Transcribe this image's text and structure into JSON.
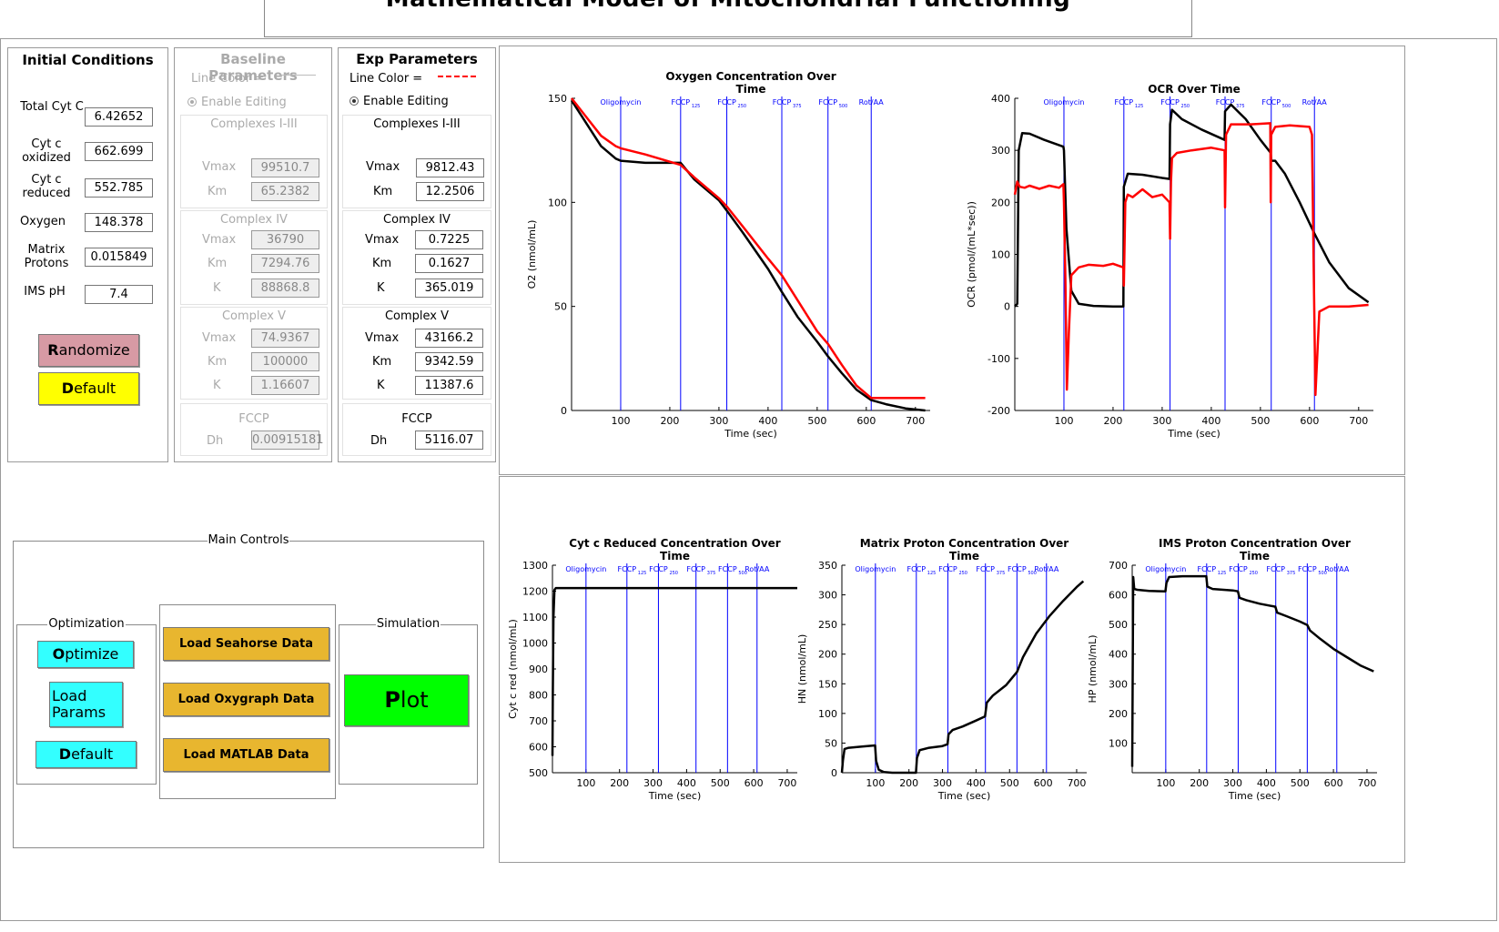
{
  "app_title": "Mathematical Model of Mitochondrial Functioning",
  "initial_conditions": {
    "title": "Initial Conditions",
    "fields": [
      {
        "label": "Total Cyt C",
        "value": "6.42652"
      },
      {
        "label": "Cyt c oxidized",
        "value": "662.699"
      },
      {
        "label": "Cyt c reduced",
        "value": "552.785"
      },
      {
        "label": "Oxygen",
        "value": "148.378"
      },
      {
        "label": "Matrix Protons",
        "value": "0.015849"
      },
      {
        "label": "IMS pH",
        "value": "7.4"
      }
    ],
    "randomize_label": "Randomize",
    "default_label": "Default"
  },
  "baseline": {
    "title": "Baseline Parameters",
    "line_color_label": "Line Color =",
    "line_color": "#bbbbbb",
    "enable_label": "Enable Editing",
    "c13_title": "Complexes I-III",
    "c13_vmax": "99510.7",
    "c13_km": "65.2382",
    "c4_title": "Complex IV",
    "c4_vmax": "36790",
    "c4_km": "7294.76",
    "c4_k": "88868.8",
    "c5_title": "Complex V",
    "c5_vmax": "74.9367",
    "c5_km": "100000",
    "c5_k": "1.16607",
    "fccp_title": "FCCP",
    "fccp_dh": "0.00915181"
  },
  "exp": {
    "title": "Exp Parameters",
    "line_color_label": "Line Color =",
    "line_color": "#ff0000",
    "enable_label": "Enable Editing",
    "c13_title": "Complexes I-III",
    "c13_vmax": "9812.43",
    "c13_km": "12.2506",
    "c4_title": "Complex IV",
    "c4_vmax": "0.7225",
    "c4_km": "0.1627",
    "c4_k": "365.019",
    "c5_title": "Complex V",
    "c5_vmax": "43166.2",
    "c5_km": "9342.59",
    "c5_k": "11387.6",
    "fccp_title": "FCCP",
    "fccp_dh": "5116.07"
  },
  "param_labels": {
    "vmax": "Vmax",
    "km": "Km",
    "k": "K",
    "dh": "Dh"
  },
  "main_controls": {
    "title": "Main Controls",
    "optimization_label": "Optimization",
    "optimize": "Optimize",
    "load_params_1": "Load",
    "load_params_2": "Params",
    "default": "Default",
    "load_seahorse": "Load Seahorse Data",
    "load_oxygraph": "Load Oxygraph Data",
    "load_matlab": "Load MATLAB Data",
    "simulation_label": "Simulation",
    "plot": "Plot"
  },
  "colors": {
    "model": "#000000",
    "exp": "#ff0000",
    "injection": "#0000ff",
    "pink": "#d79aa4",
    "yellow": "#ffff00",
    "cyan": "#33ffff",
    "orange": "#e8b62f",
    "green": "#00ff00"
  },
  "injections": [
    {
      "name": "Oligomycin",
      "sub": ""
    },
    {
      "name": "FCCP",
      "sub": "125"
    },
    {
      "name": "FCCP",
      "sub": "250"
    },
    {
      "name": "FCCP",
      "sub": "375"
    },
    {
      "name": "FCCP",
      "sub": "500"
    },
    {
      "name": "Rot/AA",
      "sub": ""
    }
  ],
  "chart_data": [
    {
      "type": "line",
      "title": "Oxygen Concentration Over Time",
      "xlabel": "Time (sec)",
      "ylabel": "O2 (nmol/mL)",
      "xlim": [
        0,
        730
      ],
      "ylim": [
        0,
        150
      ],
      "xticks": [
        100,
        200,
        300,
        400,
        500,
        600,
        700
      ],
      "yticks": [
        0,
        50,
        100,
        150
      ],
      "injection_times": [
        100,
        222,
        316,
        428,
        522,
        610
      ],
      "series": [
        {
          "color": "#000000",
          "x": [
            0,
            30,
            60,
            90,
            100,
            150,
            222,
            250,
            300,
            316,
            350,
            400,
            428,
            460,
            500,
            522,
            550,
            580,
            610,
            640,
            680,
            720
          ],
          "y": [
            149,
            138,
            127,
            121,
            120,
            119,
            119,
            111,
            101,
            96,
            85,
            68,
            57,
            45,
            33,
            26,
            18,
            10,
            5,
            3,
            1,
            0
          ]
        },
        {
          "color": "#ff0000",
          "x": [
            0,
            30,
            60,
            90,
            100,
            150,
            222,
            250,
            300,
            316,
            350,
            400,
            428,
            460,
            500,
            522,
            550,
            580,
            610,
            640,
            680,
            720
          ],
          "y": [
            150,
            141,
            132,
            127,
            126,
            123,
            118,
            112,
            102,
            98,
            88,
            73,
            65,
            53,
            38,
            32,
            22,
            12,
            6,
            6,
            6,
            6
          ]
        }
      ]
    },
    {
      "type": "line",
      "title": "OCR Over Time",
      "xlabel": "Time (sec)",
      "ylabel": "OCR (pmol/(mL*sec))",
      "xlim": [
        0,
        730
      ],
      "ylim": [
        -200,
        400
      ],
      "xticks": [
        100,
        200,
        300,
        400,
        500,
        600,
        700
      ],
      "yticks": [
        -200,
        -100,
        0,
        100,
        200,
        300,
        400
      ],
      "injection_times": [
        100,
        222,
        316,
        428,
        522,
        610
      ],
      "series": [
        {
          "color": "#000000",
          "x": [
            0,
            5,
            8,
            15,
            30,
            60,
            99,
            100,
            105,
            115,
            130,
            160,
            200,
            221,
            222,
            230,
            260,
            300,
            315,
            316,
            320,
            340,
            380,
            427,
            428,
            440,
            470,
            500,
            521,
            522,
            530,
            550,
            580,
            610,
            640,
            680,
            720
          ],
          "y": [
            0,
            5,
            300,
            333,
            332,
            320,
            307,
            300,
            150,
            30,
            5,
            1,
            0,
            0,
            230,
            255,
            253,
            247,
            245,
            350,
            378,
            360,
            340,
            320,
            375,
            388,
            360,
            320,
            295,
            280,
            280,
            255,
            200,
            140,
            85,
            35,
            8
          ]
        },
        {
          "color": "#ff0000",
          "x": [
            0,
            5,
            10,
            20,
            30,
            50,
            70,
            90,
            99,
            100,
            103,
            106,
            110,
            115,
            130,
            150,
            180,
            200,
            221,
            222,
            225,
            230,
            240,
            260,
            280,
            300,
            315,
            316,
            318,
            320,
            330,
            360,
            400,
            427,
            428,
            430,
            440,
            480,
            520,
            521,
            522,
            530,
            560,
            600,
            605,
            608,
            612,
            620,
            640,
            680,
            720
          ],
          "y": [
            215,
            240,
            230,
            228,
            232,
            226,
            232,
            228,
            235,
            200,
            50,
            -160,
            -50,
            60,
            75,
            80,
            78,
            82,
            75,
            40,
            200,
            215,
            210,
            225,
            210,
            215,
            200,
            130,
            240,
            285,
            295,
            300,
            305,
            300,
            190,
            330,
            350,
            350,
            352,
            200,
            330,
            345,
            348,
            345,
            330,
            100,
            -170,
            -10,
            0,
            0,
            3
          ]
        }
      ]
    },
    {
      "type": "line",
      "title": "Cyt c Reduced Concentration Over Time",
      "xlabel": "Time (sec)",
      "ylabel": "Cyt c red (nmol/mL)",
      "xlim": [
        0,
        730
      ],
      "ylim": [
        500,
        1300
      ],
      "xticks": [
        100,
        200,
        300,
        400,
        500,
        600,
        700
      ],
      "yticks": [
        500,
        600,
        700,
        800,
        900,
        1000,
        1100,
        1200,
        1300
      ],
      "injection_times": [
        100,
        222,
        316,
        428,
        522,
        610
      ],
      "series": [
        {
          "color": "#000000",
          "x": [
            0,
            1,
            3,
            6,
            10,
            730
          ],
          "y": [
            565,
            800,
            1100,
            1205,
            1212,
            1212
          ]
        }
      ]
    },
    {
      "type": "line",
      "title": "Matrix Proton Concentration Over Time",
      "xlabel": "Time (sec)",
      "ylabel": "HN (nmol/mL)",
      "xlim": [
        0,
        730
      ],
      "ylim": [
        0,
        350
      ],
      "xticks": [
        100,
        200,
        300,
        400,
        500,
        600,
        700
      ],
      "yticks": [
        0,
        50,
        100,
        150,
        200,
        250,
        300,
        350
      ],
      "injection_times": [
        100,
        222,
        316,
        428,
        522,
        610
      ],
      "series": [
        {
          "color": "#000000",
          "x": [
            0,
            3,
            8,
            20,
            60,
            99,
            102,
            110,
            125,
            150,
            200,
            221,
            224,
            232,
            260,
            300,
            315,
            318,
            330,
            360,
            400,
            427,
            432,
            450,
            490,
            522,
            540,
            580,
            620,
            660,
            700,
            720
          ],
          "y": [
            0,
            20,
            40,
            42,
            44,
            46,
            20,
            5,
            1,
            0,
            0,
            0,
            25,
            38,
            42,
            45,
            48,
            65,
            72,
            78,
            88,
            95,
            118,
            130,
            148,
            170,
            195,
            235,
            265,
            290,
            313,
            323
          ]
        }
      ]
    },
    {
      "type": "line",
      "title": "IMS Proton Concentration Over Time",
      "xlabel": "Time (sec)",
      "ylabel": "HP (nmol/mL)",
      "xlim": [
        0,
        730
      ],
      "ylim": [
        0,
        700
      ],
      "xticks": [
        100,
        200,
        300,
        400,
        500,
        600,
        700
      ],
      "yticks": [
        100,
        200,
        300,
        400,
        500,
        600,
        700
      ],
      "injection_times": [
        100,
        222,
        316,
        428,
        522,
        610
      ],
      "series": [
        {
          "color": "#000000",
          "x": [
            0,
            3,
            6,
            15,
            50,
            99,
            102,
            110,
            150,
            200,
            221,
            224,
            240,
            300,
            315,
            320,
            340,
            380,
            427,
            432,
            460,
            500,
            522,
            530,
            560,
            600,
            640,
            680,
            720
          ],
          "y": [
            20,
            660,
            620,
            617,
            613,
            612,
            640,
            660,
            663,
            663,
            663,
            628,
            620,
            615,
            612,
            590,
            582,
            570,
            560,
            540,
            528,
            510,
            498,
            480,
            452,
            418,
            390,
            362,
            342
          ]
        }
      ]
    }
  ]
}
